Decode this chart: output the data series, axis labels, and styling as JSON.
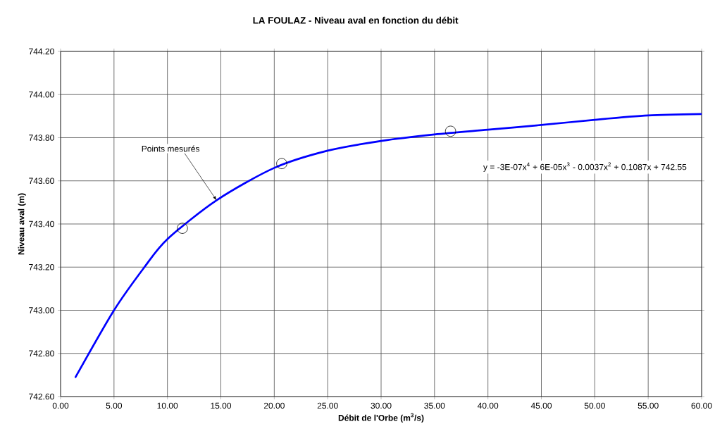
{
  "chart_data": {
    "type": "line",
    "title": "LA FOULAZ - Niveau aval en fonction du débit",
    "xlabel": "Débit de l'Orbe (m$^{3}$/s)",
    "ylabel": "Niveau aval (m)",
    "xlim": [
      0,
      60
    ],
    "ylim": [
      742.6,
      744.2
    ],
    "xticks": [
      {
        "value": 0,
        "label": "0.00"
      },
      {
        "value": 5,
        "label": "5.00"
      },
      {
        "value": 10,
        "label": "10.00"
      },
      {
        "value": 15,
        "label": "15.00"
      },
      {
        "value": 20,
        "label": "20.00"
      },
      {
        "value": 25,
        "label": "25.00"
      },
      {
        "value": 30,
        "label": "30.00"
      },
      {
        "value": 35,
        "label": "35.00"
      },
      {
        "value": 40,
        "label": "40.00"
      },
      {
        "value": 45,
        "label": "45.00"
      },
      {
        "value": 50,
        "label": "50.00"
      },
      {
        "value": 55,
        "label": "55.00"
      },
      {
        "value": 60,
        "label": "60.00"
      }
    ],
    "yticks": [
      {
        "value": 742.6,
        "label": "742.60"
      },
      {
        "value": 742.8,
        "label": "742.80"
      },
      {
        "value": 743.0,
        "label": "743.00"
      },
      {
        "value": 743.2,
        "label": "743.20"
      },
      {
        "value": 743.4,
        "label": "743.40"
      },
      {
        "value": 743.6,
        "label": "743.60"
      },
      {
        "value": 743.8,
        "label": "743.80"
      },
      {
        "value": 744.0,
        "label": "744.00"
      },
      {
        "value": 744.2,
        "label": "744.20"
      }
    ],
    "grid": true,
    "series": [
      {
        "color": "#0000ff",
        "marker": "none",
        "line_style": "solid",
        "x": [
          1.4,
          5,
          7.85,
          10,
          14.6,
          20,
          25,
          30,
          35,
          40,
          45,
          50,
          55,
          60
        ],
        "values": [
          742.69,
          743.0,
          743.2,
          743.33,
          743.51,
          743.66,
          743.74,
          743.785,
          743.815,
          743.837,
          743.859,
          743.883,
          743.903,
          743.91
        ]
      },
      {
        "type": "scatter",
        "color": "#000000",
        "marker": "circle",
        "x": [
          11.4,
          20.7,
          36.5
        ],
        "values": [
          743.38,
          743.68,
          743.83
        ]
      }
    ],
    "annotations": [
      {
        "text": "Points mesurés",
        "x": 14.6,
        "y": 743.51
      },
      "y = -3E-07x$^{4}$ + 6E-05x$^{3}$ - 0.0037x$^{2}$ + 0.1087x + 742.55"
    ]
  }
}
